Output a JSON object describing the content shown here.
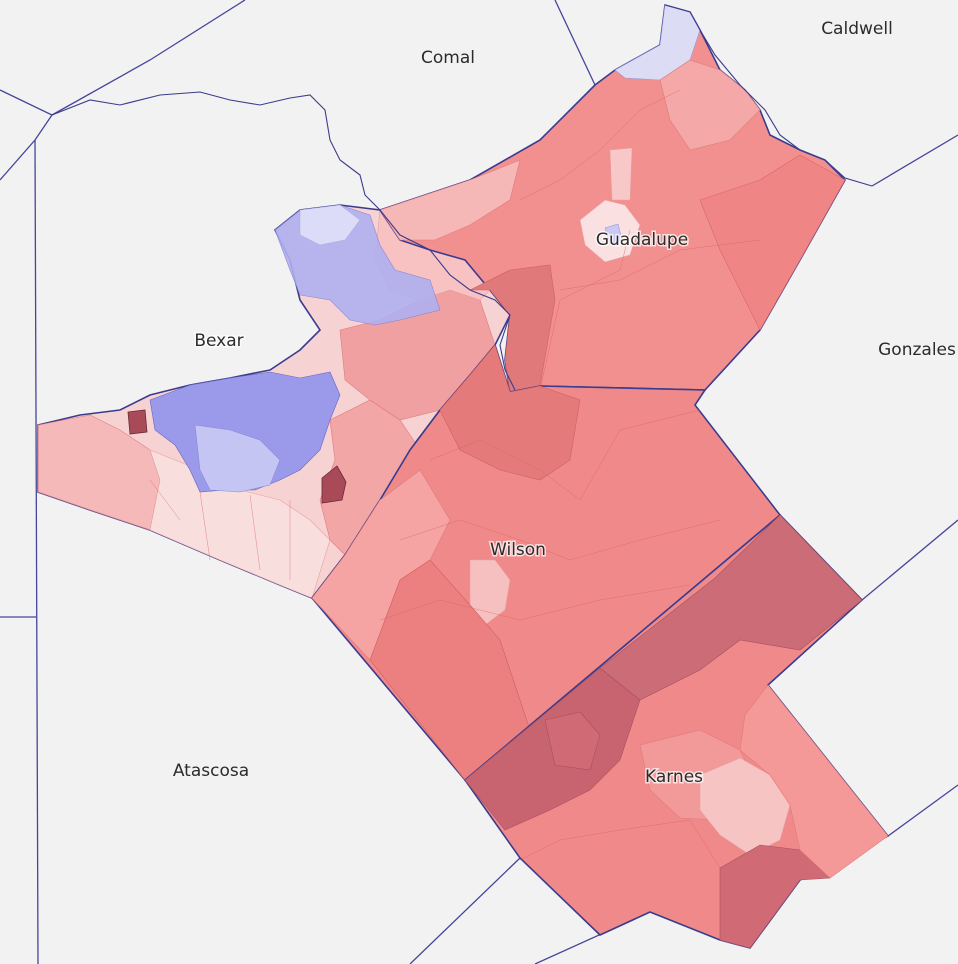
{
  "counties": {
    "outside": [
      {
        "id": "comal",
        "label": "Comal"
      },
      {
        "id": "caldwell",
        "label": "Caldwell"
      },
      {
        "id": "gonzales",
        "label": "Gonzales"
      },
      {
        "id": "atascosa",
        "label": "Atascosa"
      }
    ],
    "district": [
      {
        "id": "bexar",
        "label": "Bexar"
      },
      {
        "id": "guadalupe",
        "label": "Guadalupe"
      },
      {
        "id": "wilson",
        "label": "Wilson"
      },
      {
        "id": "karnes",
        "label": "Karnes"
      }
    ]
  },
  "colors": {
    "background": "#f2f2f2",
    "county_border": "#3b3b8f",
    "outside_border": "#45459a",
    "dem_strong": "#8a8ae6",
    "dem_light": "#c9c9f2",
    "rep_pale": "#f6c9c9",
    "rep_light": "#f3a0a0",
    "rep_mid": "#f08080",
    "rep_strong": "#e07070",
    "rep_dark": "#c86470",
    "rep_darkest": "#a84a58"
  }
}
